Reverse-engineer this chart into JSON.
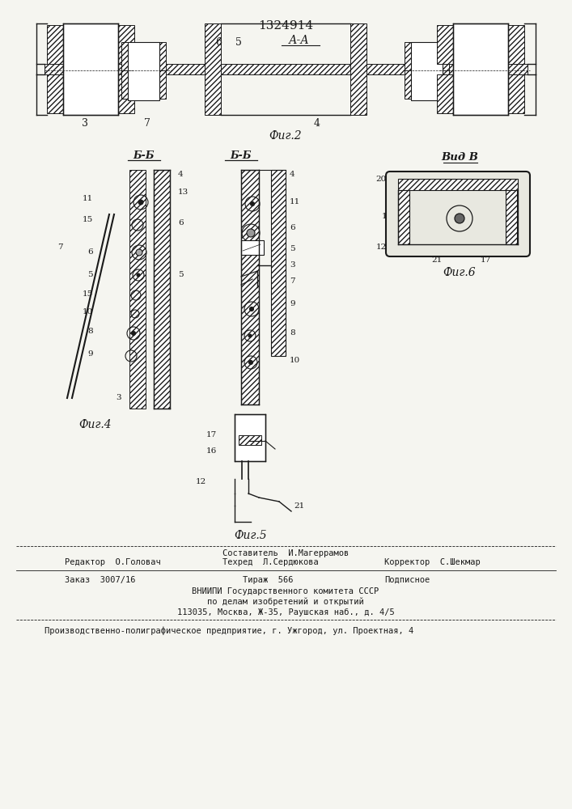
{
  "patent_number": "1324914",
  "background_color": "#f5f5f0",
  "line_color": "#1a1a1a",
  "fig2_caption": "Фиг.2",
  "fig4_caption": "Фиг.4",
  "fig5_caption": "Фиг.5",
  "fig6_caption": "Фиг.6",
  "section_aa": "А-А",
  "section_bb1": "Б-Б",
  "section_bb2": "Б-Б",
  "view_b": "Вид В",
  "footer_line1": "Составитель  И.Магеррамов",
  "footer_line2_left": "Редактор  О.Головач",
  "footer_line2_mid": "Техред  Л.Сердюкова",
  "footer_line2_right": "Корректор  С.Шекмар",
  "footer_line3_left": "Заказ  3007/16",
  "footer_line3_mid": "Тираж  566",
  "footer_line3_right": "Подписное",
  "footer_line4": "ВНИИПИ Государственного комитета СССР",
  "footer_line5": "по делам изобретений и открытий",
  "footer_line6": "113035, Москва, Ж-35, Раушская наб., д. 4/5",
  "footer_line7": "Производственно-полиграфическое предприятие, г. Ужгород, ул. Проектная, 4"
}
